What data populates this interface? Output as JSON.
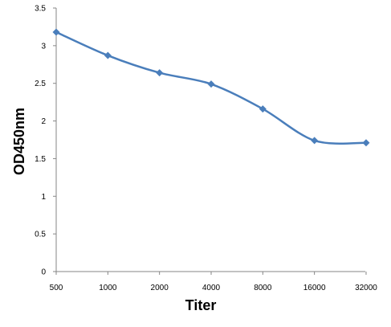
{
  "chart_data": {
    "type": "line",
    "title": "",
    "xlabel": "Titer",
    "ylabel": "OD450nm",
    "categories": [
      "500",
      "1000",
      "2000",
      "4000",
      "8000",
      "16000",
      "32000"
    ],
    "series": [
      {
        "values": [
          3.18,
          2.87,
          2.64,
          2.49,
          2.16,
          1.74,
          1.71
        ]
      }
    ],
    "ylim": [
      0,
      3.5
    ],
    "yticks": [
      "0",
      "0.5",
      "1",
      "1.5",
      "2",
      "2.5",
      "3",
      "3.5"
    ],
    "grid": false,
    "legend": "none",
    "line_color": "#4a7ebb",
    "marker": "diamond"
  }
}
